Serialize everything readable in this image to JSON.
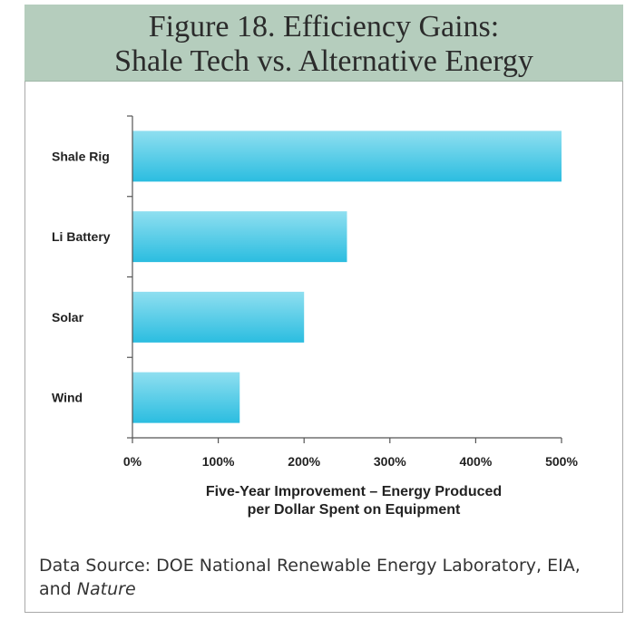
{
  "title_lines": [
    "Figure 18. Efficiency Gains:",
    "Shale Tech vs. Alternative Energy"
  ],
  "xlabel_lines": [
    "Five-Year Improvement – Energy Produced",
    "per Dollar Spent on Equipment"
  ],
  "source": {
    "line1": "Data Source: DOE National Renewable Energy Laboratory, EIA,",
    "line2_prefix": "and ",
    "line2_italic": "Nature"
  },
  "colors": {
    "header_bg": "#b5cdbd",
    "bar_top": "#8fdff0",
    "bar_bottom": "#2bbde0"
  },
  "chart_data": {
    "type": "bar",
    "orientation": "horizontal",
    "title": "Figure 18. Efficiency Gains: Shale Tech vs. Alternative Energy",
    "categories": [
      "Shale Rig",
      "Li Battery",
      "Solar",
      "Wind"
    ],
    "values": [
      500,
      250,
      200,
      125
    ],
    "xlabel": "Five-Year Improvement – Energy Produced per Dollar Spent on Equipment",
    "ylabel": "",
    "xlim": [
      0,
      500
    ],
    "xticks": [
      "0%",
      "100%",
      "200%",
      "300%",
      "400%",
      "500%"
    ],
    "unit": "%",
    "grid": false,
    "legend": "none"
  }
}
